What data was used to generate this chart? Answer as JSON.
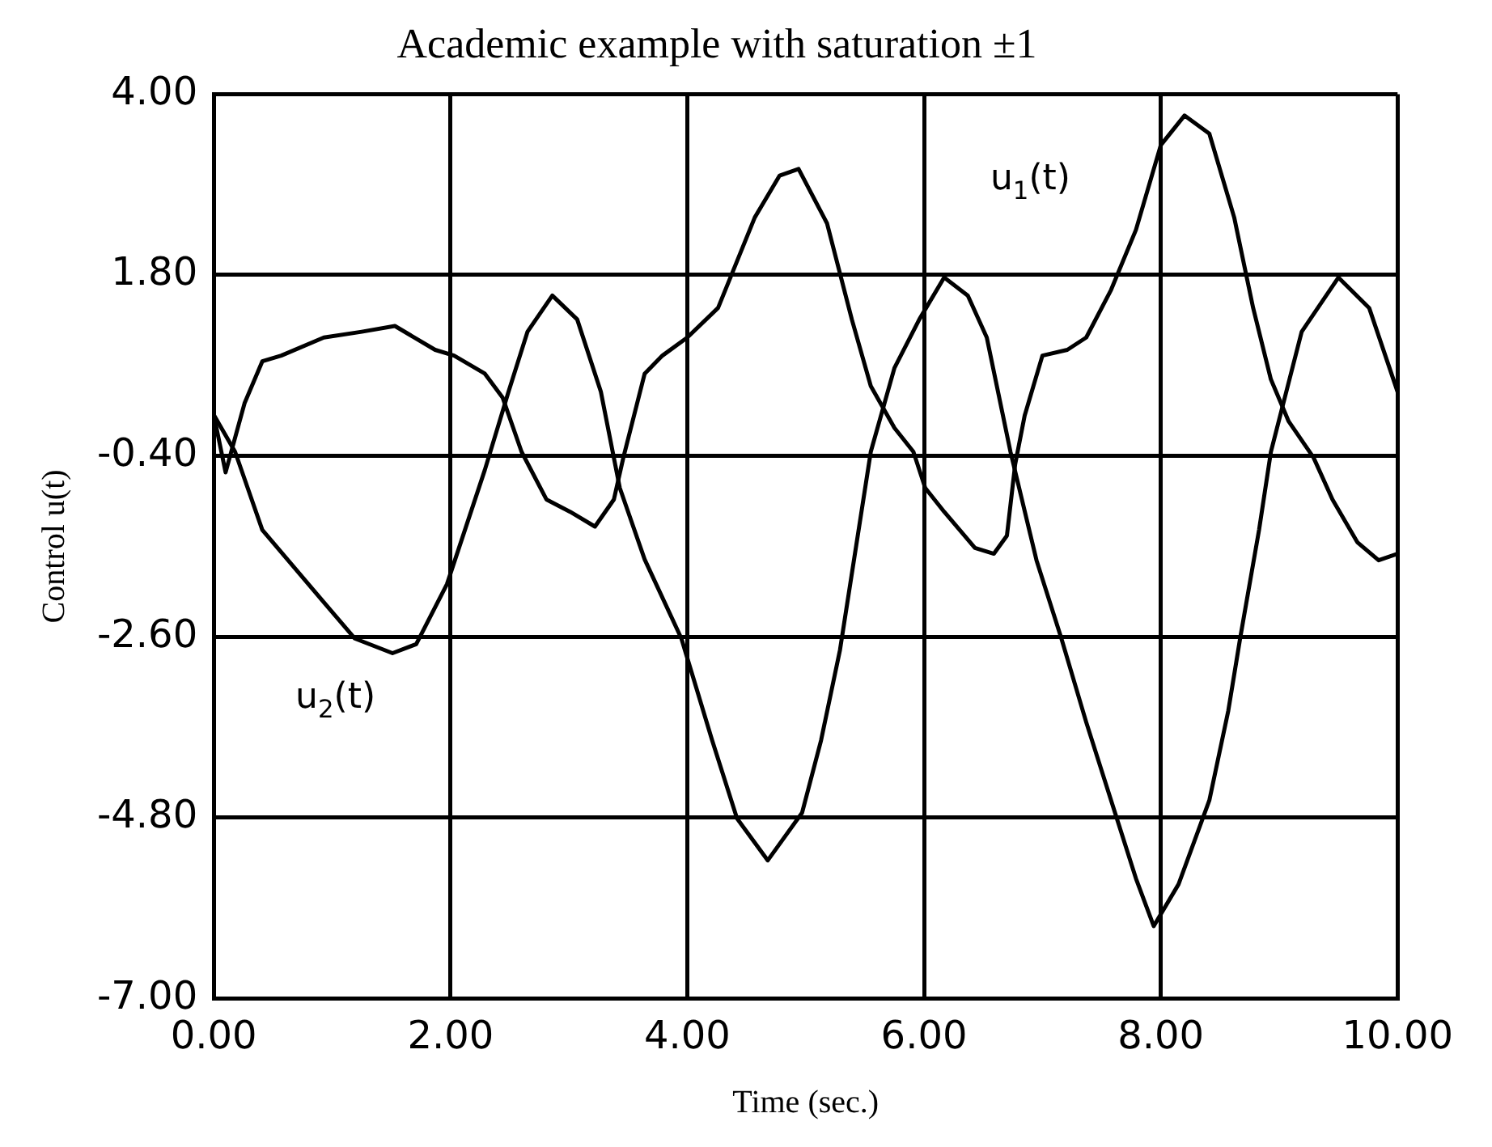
{
  "chart_data": {
    "type": "line",
    "title": "Academic example with saturation ±1",
    "xlabel": "Time (sec.)",
    "ylabel": "Control u(t)",
    "xlim": [
      0,
      10
    ],
    "xticks": [
      {
        "value": 0,
        "label": "0.00"
      },
      {
        "value": 2,
        "label": "2.00"
      },
      {
        "value": 4,
        "label": "4.00"
      },
      {
        "value": 6,
        "label": "6.00"
      },
      {
        "value": 8,
        "label": "8.00"
      },
      {
        "value": 10,
        "label": "10.00"
      }
    ],
    "ylim": [
      -7,
      4
    ],
    "yticks": [
      {
        "value": -7,
        "label": "-7.00"
      },
      {
        "value": -4.8,
        "label": "-4.80"
      },
      {
        "value": -2.6,
        "label": "-2.60"
      },
      {
        "value": -0.4,
        "label": "-0.40"
      },
      {
        "value": 1.8,
        "label": "1.80"
      },
      {
        "value": 4,
        "label": "4.00"
      }
    ],
    "grid": true,
    "legend": false,
    "marker": "none",
    "line_style": "solid",
    "series": [
      {
        "name": "u$_{1}$(t)",
        "color": "#000000",
        "x": [
          0,
          0.1,
          0.26,
          0.41,
          0.57,
          0.93,
          1.25,
          1.53,
          1.87,
          2.03,
          2.29,
          2.44,
          2.6,
          2.81,
          3.01,
          3.22,
          3.38,
          3.46,
          3.64,
          3.79,
          4.0,
          4.26,
          4.57,
          4.78,
          4.94,
          5.18,
          5.39,
          5.55,
          5.75,
          5.91,
          6.01,
          6.17,
          6.43,
          6.59,
          6.7,
          6.77,
          6.85,
          7.0,
          7.21,
          7.37,
          7.58,
          7.79,
          8.0,
          8.2,
          8.41,
          8.62,
          8.78,
          8.93,
          9.08,
          9.29,
          9.45,
          9.66,
          9.84,
          10.0
        ],
        "values": [
          0.1,
          -0.6,
          0.24,
          0.75,
          0.82,
          1.04,
          1.11,
          1.18,
          0.89,
          0.82,
          0.6,
          0.31,
          -0.35,
          -0.93,
          -1.08,
          -1.26,
          -0.93,
          -0.42,
          0.6,
          0.82,
          1.04,
          1.4,
          2.5,
          3.01,
          3.09,
          2.43,
          1.26,
          0.45,
          -0.06,
          -0.35,
          -0.79,
          -1.08,
          -1.52,
          -1.59,
          -1.37,
          -0.5,
          0.09,
          0.82,
          0.89,
          1.04,
          1.62,
          2.35,
          3.38,
          3.74,
          3.52,
          2.5,
          1.4,
          0.53,
          0.02,
          -0.42,
          -0.93,
          -1.45,
          -1.67,
          -1.59
        ]
      },
      {
        "name": "u$_{2}$(t)",
        "color": "#000000",
        "x": [
          0,
          0.18,
          0.41,
          0.67,
          0.93,
          1.19,
          1.51,
          1.71,
          1.97,
          2.29,
          2.49,
          2.65,
          2.86,
          3.07,
          3.27,
          3.43,
          3.64,
          3.95,
          4.21,
          4.42,
          4.68,
          4.97,
          5.13,
          5.29,
          5.55,
          5.75,
          5.96,
          6.17,
          6.37,
          6.53,
          6.73,
          6.95,
          7.16,
          7.37,
          7.58,
          7.79,
          7.94,
          8.15,
          8.41,
          8.57,
          8.67,
          8.83,
          8.93,
          9.19,
          9.5,
          9.76,
          10.0
        ],
        "values": [
          0.1,
          -0.35,
          -1.3,
          -1.74,
          -2.18,
          -2.62,
          -2.8,
          -2.69,
          -1.96,
          -0.57,
          0.38,
          1.11,
          1.55,
          1.26,
          0.38,
          -0.79,
          -1.66,
          -2.62,
          -3.86,
          -4.81,
          -5.32,
          -4.74,
          -3.86,
          -2.76,
          -0.35,
          0.67,
          1.26,
          1.77,
          1.55,
          1.04,
          -0.35,
          -1.67,
          -2.62,
          -3.64,
          -4.59,
          -5.54,
          -6.12,
          -5.61,
          -4.59,
          -3.5,
          -2.62,
          -1.3,
          -0.35,
          1.11,
          1.77,
          1.4,
          0.38
        ]
      }
    ]
  }
}
